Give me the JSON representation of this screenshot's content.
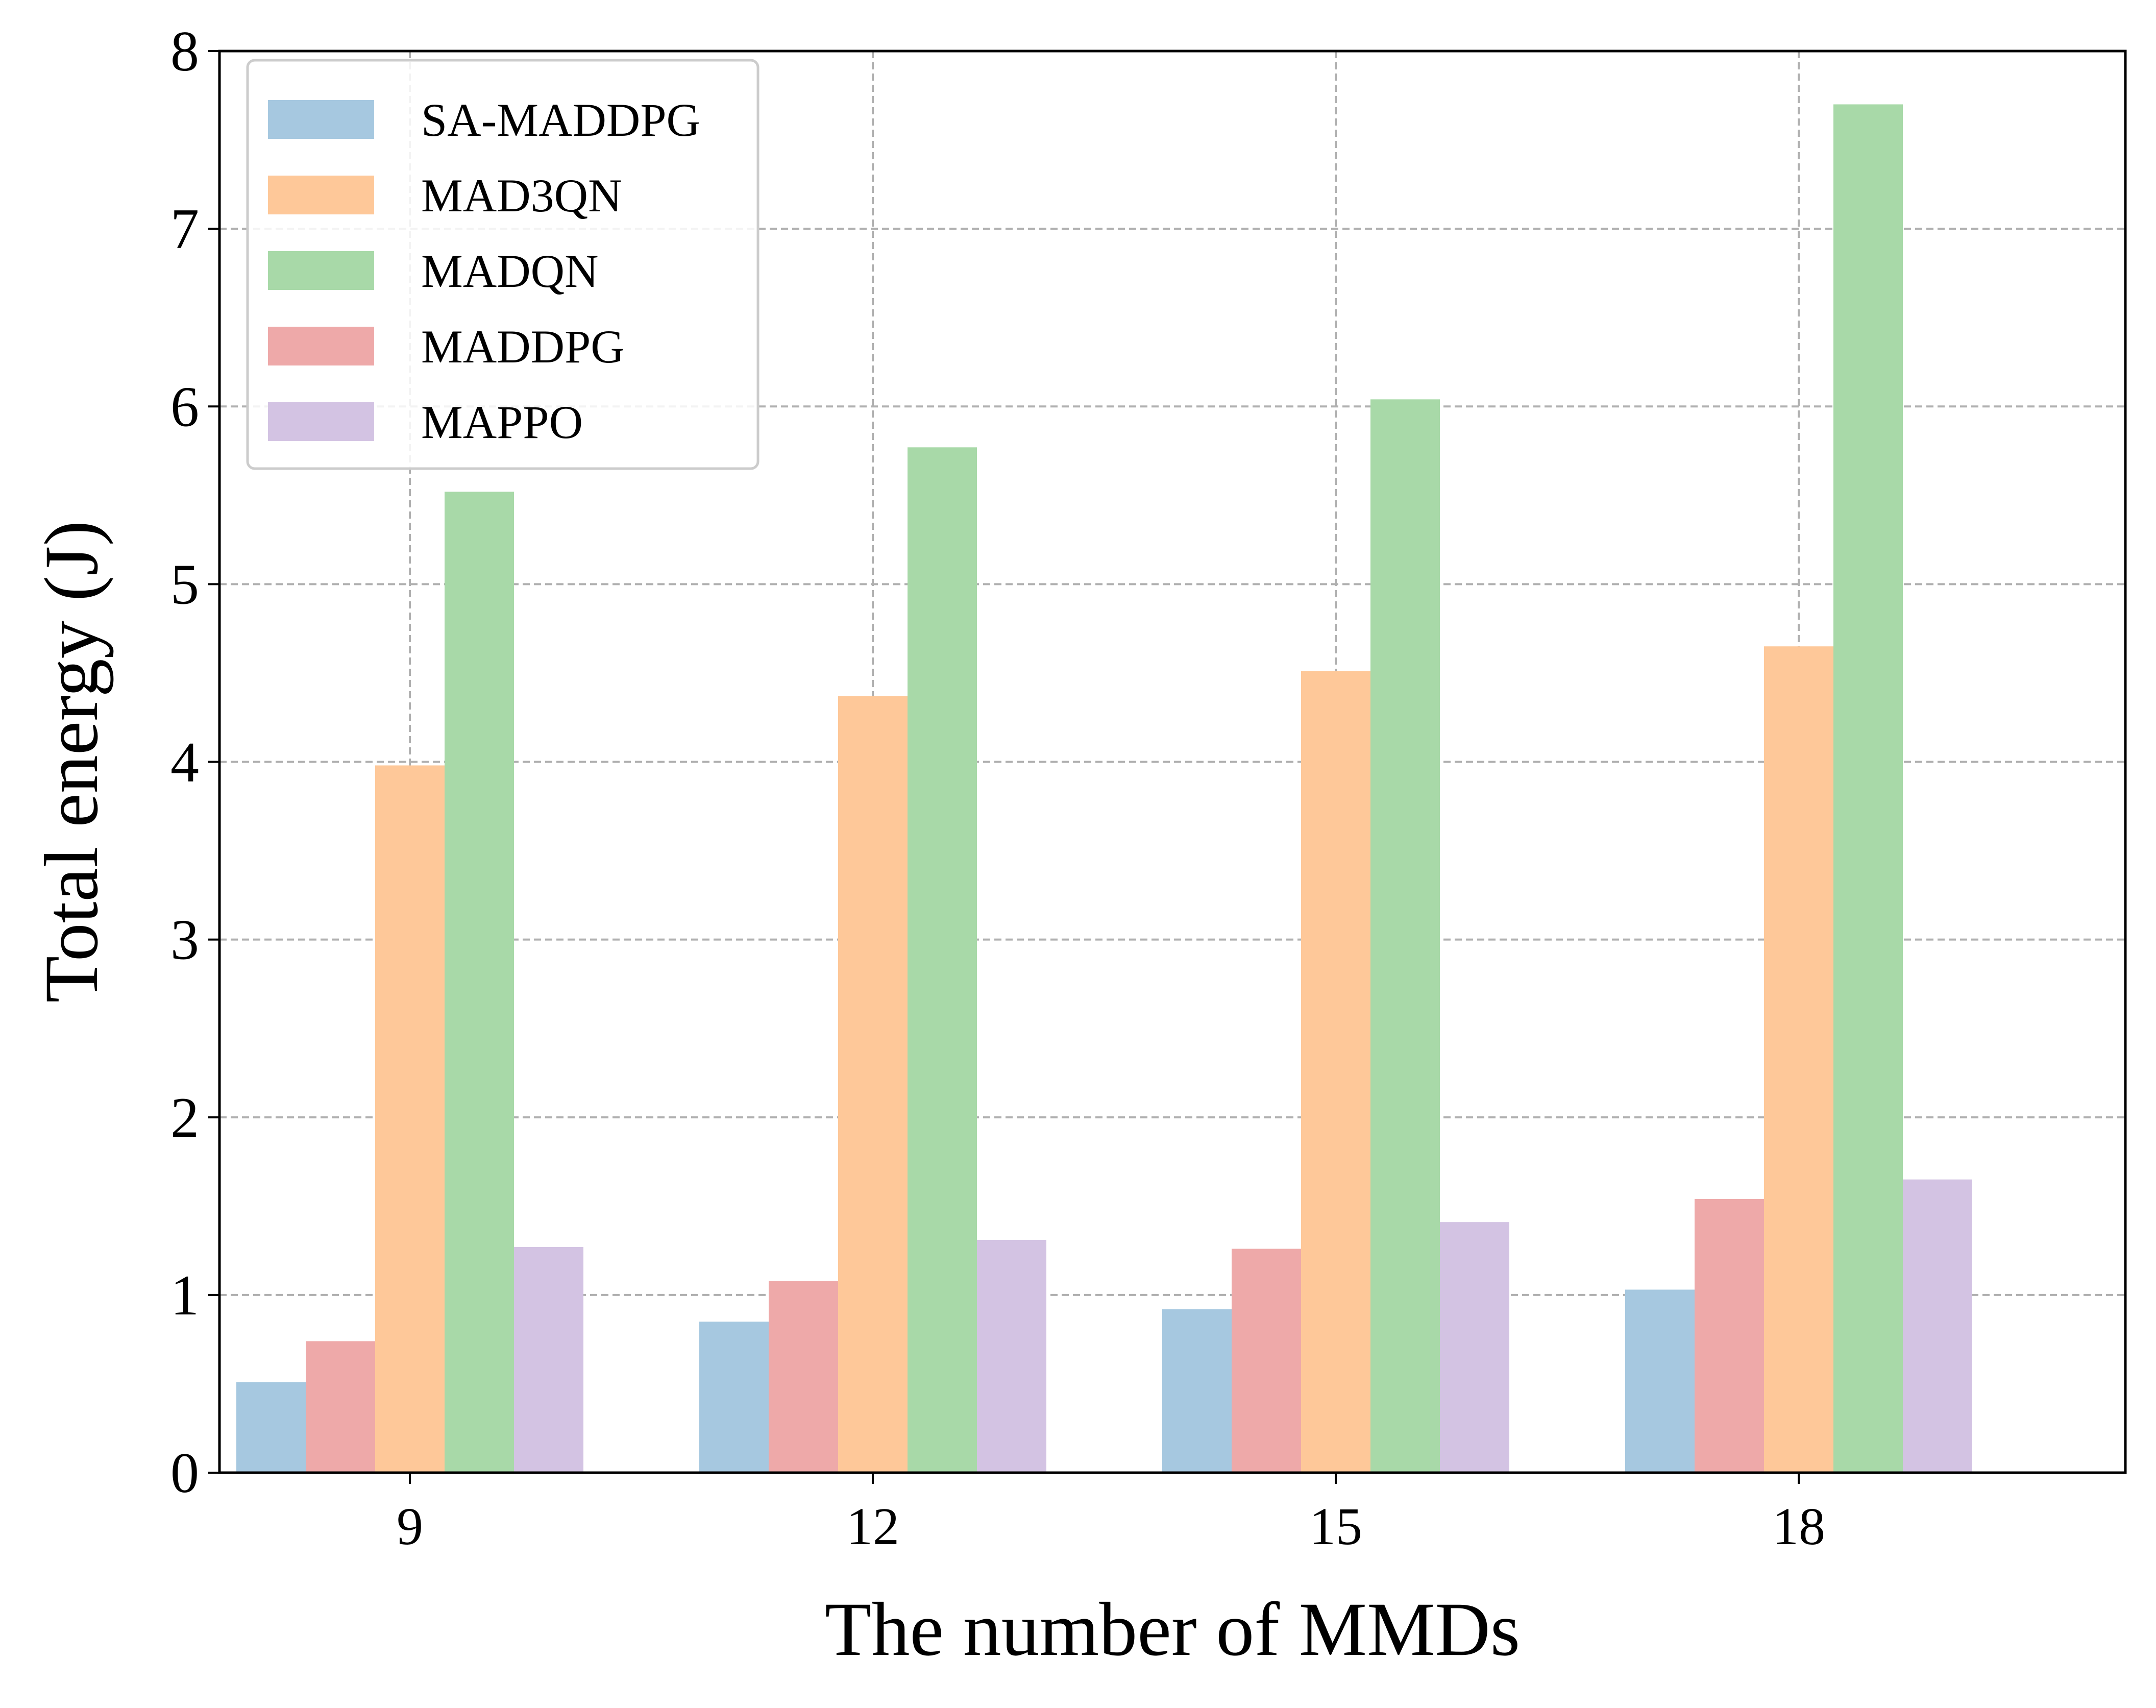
{
  "chart_data": {
    "type": "bar",
    "xlabel": "The number of MMDs",
    "ylabel": "Total energy (J)",
    "categories": [
      "9",
      "12",
      "15",
      "18"
    ],
    "ylim": [
      0,
      8
    ],
    "yticks": [
      "0",
      "1",
      "2",
      "3",
      "4",
      "5",
      "6",
      "7",
      "8"
    ],
    "grid": true,
    "legend_position": "top-left",
    "series": [
      {
        "name": "SA-MADDPG",
        "color": "#a6c8e0",
        "values": [
          0.51,
          0.85,
          0.92,
          1.03
        ]
      },
      {
        "name": "MADDPG",
        "color": "#eea9a9",
        "values": [
          0.74,
          1.08,
          1.26,
          1.54
        ]
      },
      {
        "name": "MAD3QN",
        "color": "#fec899",
        "values": [
          3.98,
          4.37,
          4.51,
          4.65
        ]
      },
      {
        "name": "MADQN",
        "color": "#a8d9a8",
        "values": [
          5.52,
          5.77,
          6.04,
          7.7
        ]
      },
      {
        "name": "MAPPO",
        "color": "#d3c3e3",
        "values": [
          1.27,
          1.31,
          1.41,
          1.65
        ]
      }
    ],
    "legend_order": [
      "SA-MADDPG",
      "MAD3QN",
      "MADQN",
      "MADDPG",
      "MAPPO"
    ]
  }
}
